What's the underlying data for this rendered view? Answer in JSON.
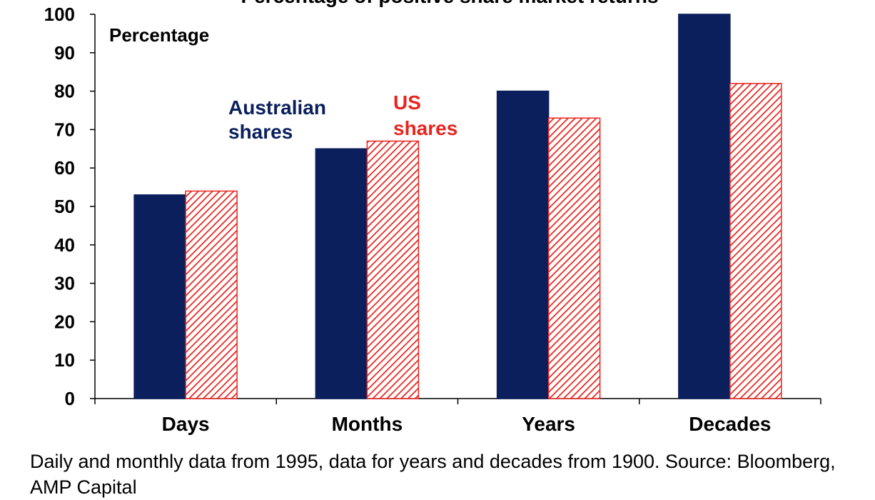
{
  "chart_data": {
    "type": "bar",
    "title": "Percentage of positive share market returns",
    "ylabel": "Percentage",
    "xlabel": "",
    "categories": [
      "Days",
      "Months",
      "Years",
      "Decades"
    ],
    "ylim": [
      0,
      100
    ],
    "yticks": [
      0,
      10,
      20,
      30,
      40,
      50,
      60,
      70,
      80,
      90,
      100
    ],
    "grid": false,
    "series": [
      {
        "name": "Australian shares",
        "values": [
          53,
          65,
          80,
          100
        ],
        "color": "#0a1f5c",
        "fill": "solid"
      },
      {
        "name": "US shares",
        "values": [
          54,
          67,
          73,
          82
        ],
        "color": "#e8251f",
        "fill": "diagonal-hatch"
      }
    ],
    "legend": {
      "placement": "inline-top-left",
      "lines": [
        [
          "Australian",
          "shares"
        ],
        [
          "US",
          "shares"
        ]
      ]
    }
  },
  "footnote": "Daily and monthly data from 1995, data for years and decades from 1900. Source: Bloomberg, AMP Capital"
}
